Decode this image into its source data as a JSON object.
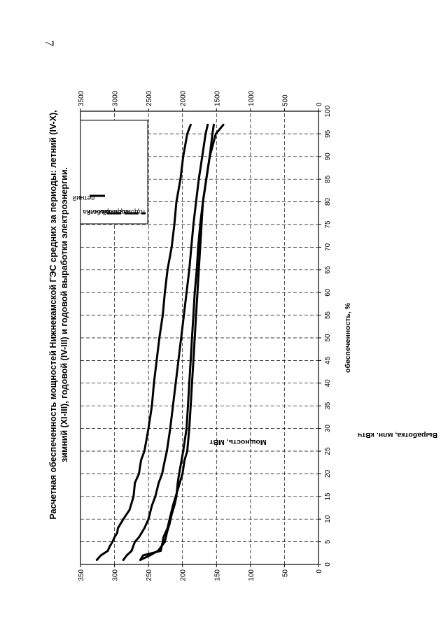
{
  "page": {
    "number": "7"
  },
  "chart_data": {
    "type": "line",
    "title_line1": "Расчетная обеспеченность мощностей Нижнекамской ГЭС средних за периоды: летний (IV-X),",
    "title_line2": "зимний (XI-III), годовой (IV-III) и годовой выработки электроэнергии.",
    "xlabel": "обеспеченность, %",
    "ylabel_left": "Мощность, МВт",
    "ylabel_right": "Выработка, млн. кВтч",
    "xlim": [
      0,
      100
    ],
    "ylim_left": [
      0,
      350
    ],
    "ylim_right": [
      0,
      3500
    ],
    "x_ticks": [
      "0",
      "5",
      "10",
      "15",
      "20",
      "25",
      "30",
      "35",
      "40",
      "45",
      "50",
      "55",
      "60",
      "65",
      "70",
      "75",
      "80",
      "85",
      "90",
      "95",
      "100"
    ],
    "y_ticks_left": [
      "0",
      "50",
      "100",
      "150",
      "200",
      "250",
      "300",
      "350"
    ],
    "y_ticks_right": [
      "0",
      "500",
      "1000",
      "1500",
      "2000",
      "2500",
      "3000",
      "3500"
    ],
    "grid": true,
    "legend_position": "top-right",
    "series": [
      {
        "name": "летний",
        "axis": "left",
        "x": [
          1,
          2,
          3,
          5,
          6,
          7,
          8,
          10,
          13,
          15,
          18,
          20,
          23,
          25,
          30,
          35,
          40,
          45,
          50,
          55,
          60,
          65,
          70,
          75,
          80,
          85,
          90,
          95,
          97
        ],
        "y": [
          287,
          282,
          275,
          270,
          264,
          260,
          256,
          250,
          245,
          240,
          235,
          230,
          226,
          223,
          218,
          214,
          210,
          206,
          202,
          198,
          194,
          190,
          187,
          184,
          180,
          176,
          171,
          166,
          163
        ]
      },
      {
        "name": "зимний",
        "axis": "left",
        "x": [
          1,
          2,
          3,
          5,
          6,
          7,
          8,
          10,
          13,
          15,
          18,
          20,
          23,
          25,
          30,
          35,
          40,
          45,
          50,
          55,
          60,
          65,
          70,
          75,
          80,
          85,
          90,
          95,
          97
        ],
        "y": [
          262,
          258,
          232,
          229,
          228,
          225,
          222,
          219,
          214,
          210,
          204,
          200,
          197,
          193,
          190,
          188,
          186,
          184,
          182,
          180,
          178,
          176,
          174,
          172,
          170,
          165,
          160,
          156,
          154
        ]
      },
      {
        "name": "годовой",
        "axis": "left",
        "x": [
          1,
          2,
          3,
          5,
          7,
          9,
          11,
          13,
          15,
          18,
          20,
          25,
          30,
          35,
          40,
          45,
          50,
          55,
          60,
          65,
          70,
          75,
          80,
          85,
          90,
          95,
          97
        ],
        "y": [
          262,
          248,
          236,
          226,
          223,
          219,
          216,
          212,
          209,
          207,
          205,
          199,
          194,
          192,
          190,
          188,
          186,
          184,
          182,
          179,
          177,
          174,
          170,
          165,
          160,
          151,
          140
        ]
      },
      {
        "name": "годовая выработка",
        "axis": "right",
        "x": [
          1,
          2,
          3,
          4,
          5,
          6,
          7,
          8,
          10,
          12,
          13,
          15,
          18,
          20,
          23,
          25,
          30,
          35,
          40,
          45,
          50,
          55,
          60,
          65,
          70,
          75,
          80,
          85,
          90,
          95,
          97
        ],
        "y": [
          3260,
          3200,
          3100,
          3070,
          3030,
          3000,
          2960,
          2950,
          2870,
          2780,
          2760,
          2720,
          2700,
          2640,
          2610,
          2560,
          2500,
          2450,
          2420,
          2380,
          2340,
          2290,
          2260,
          2220,
          2160,
          2120,
          2090,
          2030,
          1990,
          1930,
          1880
        ]
      }
    ]
  }
}
